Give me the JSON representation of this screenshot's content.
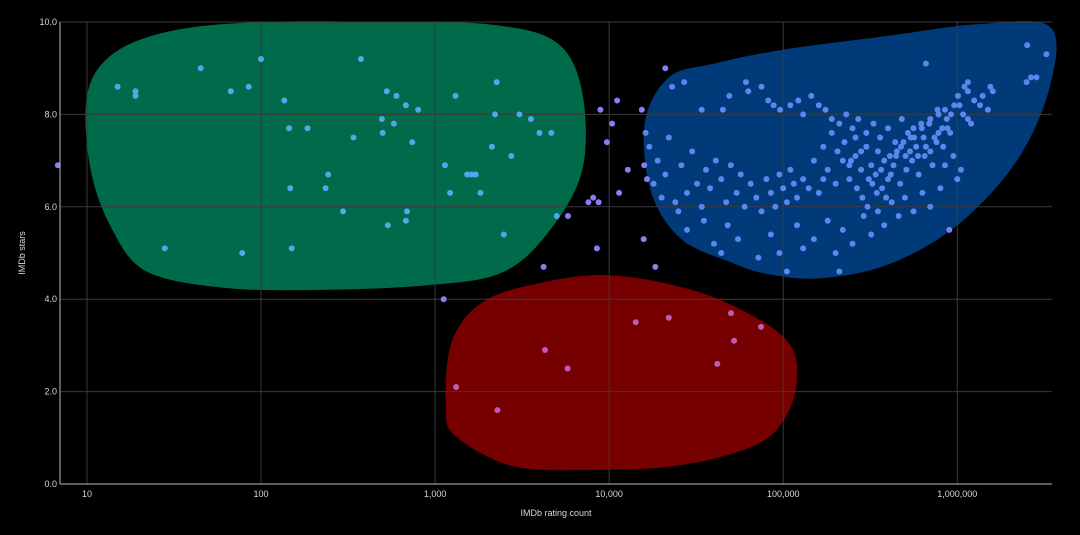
{
  "chart_data": {
    "type": "scatter",
    "xlabel": "IMDb rating count",
    "ylabel": "IMDb stars",
    "x_scale": "log",
    "xlim": [
      7,
      3500000
    ],
    "ylim": [
      0,
      10
    ],
    "x_ticks": [
      {
        "value": 10,
        "label": "10"
      },
      {
        "value": 100,
        "label": "100"
      },
      {
        "value": 1000,
        "label": "1,000"
      },
      {
        "value": 10000,
        "label": "10,000"
      },
      {
        "value": 100000,
        "label": "100,000"
      },
      {
        "value": 1000000,
        "label": "1,000,000"
      }
    ],
    "y_ticks": [
      {
        "value": 0,
        "label": "0.0"
      },
      {
        "value": 2,
        "label": "2.0"
      },
      {
        "value": 4,
        "label": "4.0"
      },
      {
        "value": 6,
        "label": "6.0"
      },
      {
        "value": 8,
        "label": "8.0"
      },
      {
        "value": 10,
        "label": "10.0"
      }
    ],
    "grid": true,
    "legend": "none",
    "colors": {
      "background": "#000000",
      "grid": "#3a3a3a",
      "axis": "#b8b8b8",
      "points": "#8a7cf5",
      "points_green_region": "#4fa9e6",
      "points_blue_region": "#5b86f0",
      "points_red_region": "#c05ab8",
      "region_green": "#006b4a",
      "region_blue": "#003a78",
      "region_red": "#760000"
    },
    "regions": [
      {
        "color": "region_green",
        "outline": [
          [
            10,
            8.4
          ],
          [
            10.5,
            6.8
          ],
          [
            14,
            5.5
          ],
          [
            22,
            4.6
          ],
          [
            60,
            4.25
          ],
          [
            200,
            4.2
          ],
          [
            900,
            4.3
          ],
          [
            2500,
            4.6
          ],
          [
            4800,
            5.6
          ],
          [
            7100,
            6.9
          ],
          [
            6900,
            8.6
          ],
          [
            4800,
            9.6
          ],
          [
            2000,
            9.95
          ],
          [
            600,
            10.0
          ],
          [
            100,
            10.0
          ],
          [
            30,
            9.8
          ],
          [
            14,
            9.3
          ],
          [
            10,
            8.4
          ]
        ]
      },
      {
        "color": "region_blue",
        "outline": [
          [
            16000,
            7.8
          ],
          [
            17500,
            6.3
          ],
          [
            26000,
            5.3
          ],
          [
            50000,
            4.8
          ],
          [
            80000,
            4.55
          ],
          [
            160000,
            4.45
          ],
          [
            400000,
            4.75
          ],
          [
            1000000,
            5.6
          ],
          [
            2200000,
            7.0
          ],
          [
            3400000,
            8.6
          ],
          [
            3400000,
            9.9
          ],
          [
            1300000,
            9.95
          ],
          [
            400000,
            9.7
          ],
          [
            100000,
            9.4
          ],
          [
            40000,
            9.1
          ],
          [
            22000,
            8.8
          ],
          [
            16000,
            7.8
          ]
        ]
      },
      {
        "color": "region_red",
        "outline": [
          [
            1150,
            1.7
          ],
          [
            1300,
            1.05
          ],
          [
            2700,
            0.4
          ],
          [
            7000,
            0.3
          ],
          [
            25000,
            0.4
          ],
          [
            70000,
            0.85
          ],
          [
            105000,
            1.5
          ],
          [
            120000,
            2.3
          ],
          [
            110000,
            3.0
          ],
          [
            70000,
            3.6
          ],
          [
            30000,
            4.2
          ],
          [
            10000,
            4.52
          ],
          [
            4000,
            4.35
          ],
          [
            1900,
            3.95
          ],
          [
            1250,
            3.1
          ],
          [
            1150,
            1.7
          ]
        ]
      }
    ],
    "points": [
      [
        6.8,
        6.9
      ],
      [
        15,
        8.6
      ],
      [
        19,
        8.5
      ],
      [
        19,
        8.4
      ],
      [
        28,
        5.1
      ],
      [
        45,
        9.0
      ],
      [
        67,
        8.5
      ],
      [
        78,
        5.0
      ],
      [
        85,
        8.6
      ],
      [
        100,
        9.2
      ],
      [
        136,
        8.3
      ],
      [
        145,
        7.7
      ],
      [
        147,
        6.4
      ],
      [
        150,
        5.1
      ],
      [
        185,
        7.7
      ],
      [
        235,
        6.4
      ],
      [
        243,
        6.7
      ],
      [
        296,
        5.9
      ],
      [
        340,
        7.5
      ],
      [
        375,
        9.2
      ],
      [
        495,
        7.9
      ],
      [
        500,
        7.6
      ],
      [
        528,
        8.5
      ],
      [
        535,
        5.6
      ],
      [
        580,
        7.8
      ],
      [
        600,
        8.4
      ],
      [
        680,
        8.2
      ],
      [
        690,
        5.9
      ],
      [
        680,
        5.7
      ],
      [
        740,
        7.4
      ],
      [
        800,
        8.1
      ],
      [
        1140,
        6.9
      ],
      [
        1220,
        6.3
      ],
      [
        1310,
        8.4
      ],
      [
        1530,
        6.7
      ],
      [
        1620,
        6.7
      ],
      [
        1710,
        6.7
      ],
      [
        1820,
        6.3
      ],
      [
        2120,
        7.3
      ],
      [
        2210,
        8.0
      ],
      [
        2260,
        8.7
      ],
      [
        2480,
        5.4
      ],
      [
        2740,
        7.1
      ],
      [
        3050,
        8.0
      ],
      [
        3550,
        7.9
      ],
      [
        3980,
        7.6
      ],
      [
        4650,
        7.6
      ],
      [
        5000,
        5.8
      ],
      [
        5800,
        5.8
      ],
      [
        4200,
        4.7
      ],
      [
        7600,
        6.1
      ],
      [
        8100,
        6.2
      ],
      [
        8700,
        6.1
      ],
      [
        8500,
        5.1
      ],
      [
        8900,
        8.1
      ],
      [
        9700,
        7.4
      ],
      [
        10400,
        7.8
      ],
      [
        11100,
        8.3
      ],
      [
        11400,
        6.3
      ],
      [
        12800,
        6.8
      ],
      [
        15400,
        8.1
      ],
      [
        15800,
        5.3
      ],
      [
        15900,
        6.9
      ],
      [
        18400,
        4.7
      ],
      [
        1120,
        4.0
      ],
      [
        1320,
        2.1
      ],
      [
        2280,
        1.6
      ],
      [
        4280,
        2.9
      ],
      [
        5780,
        2.5
      ],
      [
        14200,
        3.5
      ],
      [
        22000,
        3.6
      ],
      [
        41800,
        2.6
      ],
      [
        50100,
        3.7
      ],
      [
        52200,
        3.1
      ],
      [
        74500,
        3.4
      ],
      [
        2520000,
        9.5
      ],
      [
        3250000,
        9.3
      ],
      [
        2850000,
        8.8
      ],
      [
        2650000,
        8.8
      ],
      [
        2500000,
        8.7
      ],
      [
        1150000,
        8.7
      ],
      [
        1100000,
        8.6
      ],
      [
        1150000,
        8.5
      ],
      [
        660000,
        9.1
      ],
      [
        920000,
        8.0
      ],
      [
        1150000,
        7.9
      ],
      [
        1030000,
        8.2
      ],
      [
        1010000,
        8.4
      ],
      [
        850000,
        8.1
      ],
      [
        780000,
        8.0
      ],
      [
        700000,
        7.9
      ],
      [
        620000,
        7.8
      ],
      [
        560000,
        7.7
      ],
      [
        540000,
        7.5
      ],
      [
        490000,
        7.4
      ],
      [
        450000,
        7.2
      ],
      [
        410000,
        7.1
      ],
      [
        380000,
        7.0
      ],
      [
        350000,
        7.2
      ],
      [
        320000,
        6.9
      ],
      [
        300000,
        7.3
      ],
      [
        280000,
        6.8
      ],
      [
        260000,
        7.1
      ],
      [
        240000,
        6.6
      ],
      [
        220000,
        7.0
      ],
      [
        200000,
        6.5
      ],
      [
        180000,
        6.8
      ],
      [
        170000,
        6.6
      ],
      [
        160000,
        6.3
      ],
      [
        150000,
        7.0
      ],
      [
        140000,
        6.4
      ],
      [
        130000,
        6.6
      ],
      [
        120000,
        6.2
      ],
      [
        115000,
        6.5
      ],
      [
        110000,
        6.8
      ],
      [
        105000,
        6.1
      ],
      [
        100000,
        6.4
      ],
      [
        95000,
        6.7
      ],
      [
        90000,
        6.0
      ],
      [
        85000,
        6.3
      ],
      [
        80000,
        6.6
      ],
      [
        75000,
        5.9
      ],
      [
        70000,
        6.2
      ],
      [
        65000,
        6.5
      ],
      [
        60000,
        6.0
      ],
      [
        57000,
        6.7
      ],
      [
        54000,
        6.3
      ],
      [
        50000,
        6.9
      ],
      [
        47000,
        6.1
      ],
      [
        44000,
        6.6
      ],
      [
        41000,
        7.0
      ],
      [
        38000,
        6.4
      ],
      [
        36000,
        6.8
      ],
      [
        34000,
        6.0
      ],
      [
        32000,
        6.5
      ],
      [
        30000,
        7.2
      ],
      [
        28000,
        6.3
      ],
      [
        26000,
        6.9
      ],
      [
        24000,
        6.1
      ],
      [
        22000,
        7.5
      ],
      [
        21000,
        6.7
      ],
      [
        20000,
        6.2
      ],
      [
        19000,
        7.0
      ],
      [
        18000,
        6.5
      ],
      [
        17000,
        7.3
      ],
      [
        16500,
        6.6
      ],
      [
        16200,
        7.6
      ],
      [
        21000,
        9.0
      ],
      [
        27000,
        8.7
      ],
      [
        23000,
        8.6
      ],
      [
        34000,
        8.1
      ],
      [
        45000,
        8.1
      ],
      [
        49000,
        8.4
      ],
      [
        61000,
        8.7
      ],
      [
        63000,
        8.5
      ],
      [
        75000,
        8.6
      ],
      [
        82000,
        8.3
      ],
      [
        88000,
        8.2
      ],
      [
        96000,
        8.1
      ],
      [
        110000,
        8.2
      ],
      [
        122000,
        8.3
      ],
      [
        130000,
        8.0
      ],
      [
        145000,
        8.4
      ],
      [
        160000,
        8.2
      ],
      [
        175000,
        8.1
      ],
      [
        190000,
        7.9
      ],
      [
        210000,
        7.8
      ],
      [
        230000,
        8.0
      ],
      [
        250000,
        7.7
      ],
      [
        270000,
        7.9
      ],
      [
        300000,
        7.6
      ],
      [
        330000,
        7.8
      ],
      [
        360000,
        7.5
      ],
      [
        400000,
        7.7
      ],
      [
        440000,
        7.4
      ],
      [
        480000,
        7.9
      ],
      [
        520000,
        7.6
      ],
      [
        580000,
        7.3
      ],
      [
        640000,
        7.5
      ],
      [
        700000,
        7.2
      ],
      [
        760000,
        7.4
      ],
      [
        850000,
        6.9
      ],
      [
        950000,
        7.1
      ],
      [
        1050000,
        6.8
      ],
      [
        1200000,
        7.8
      ],
      [
        1350000,
        8.2
      ],
      [
        1500000,
        8.1
      ],
      [
        130000,
        5.1
      ],
      [
        120000,
        5.6
      ],
      [
        95000,
        5.0
      ],
      [
        85000,
        5.4
      ],
      [
        72000,
        4.9
      ],
      [
        105000,
        4.6
      ],
      [
        150000,
        5.3
      ],
      [
        180000,
        5.7
      ],
      [
        200000,
        5.0
      ],
      [
        220000,
        5.5
      ],
      [
        250000,
        5.2
      ],
      [
        290000,
        5.8
      ],
      [
        320000,
        5.4
      ],
      [
        350000,
        5.9
      ],
      [
        380000,
        5.6
      ],
      [
        420000,
        6.1
      ],
      [
        460000,
        5.8
      ],
      [
        500000,
        6.2
      ],
      [
        560000,
        5.9
      ],
      [
        630000,
        6.3
      ],
      [
        700000,
        6.0
      ],
      [
        800000,
        6.4
      ],
      [
        900000,
        5.5
      ],
      [
        1000000,
        6.6
      ],
      [
        55000,
        5.3
      ],
      [
        48000,
        5.6
      ],
      [
        40000,
        5.2
      ],
      [
        35000,
        5.7
      ],
      [
        28000,
        5.5
      ],
      [
        25000,
        5.9
      ],
      [
        44000,
        5.0
      ],
      [
        210000,
        4.6
      ],
      [
        240000,
        6.9
      ],
      [
        260000,
        7.5
      ],
      [
        280000,
        7.2
      ],
      [
        310000,
        6.6
      ],
      [
        340000,
        6.7
      ],
      [
        370000,
        6.4
      ],
      [
        400000,
        6.6
      ],
      [
        430000,
        6.9
      ],
      [
        470000,
        6.5
      ],
      [
        510000,
        6.8
      ],
      [
        550000,
        7.0
      ],
      [
        600000,
        6.7
      ],
      [
        650000,
        7.1
      ],
      [
        720000,
        6.9
      ],
      [
        780000,
        7.6
      ],
      [
        830000,
        7.3
      ],
      [
        880000,
        7.7
      ],
      [
        170000,
        7.3
      ],
      [
        190000,
        7.6
      ],
      [
        205000,
        7.2
      ],
      [
        225000,
        7.4
      ],
      [
        245000,
        7.0
      ],
      [
        265000,
        6.4
      ],
      [
        285000,
        6.2
      ],
      [
        305000,
        6.0
      ],
      [
        325000,
        6.5
      ],
      [
        345000,
        6.3
      ],
      [
        365000,
        6.8
      ],
      [
        390000,
        6.2
      ],
      [
        415000,
        6.7
      ],
      [
        445000,
        7.1
      ],
      [
        475000,
        7.3
      ],
      [
        505000,
        7.1
      ],
      [
        535000,
        7.2
      ],
      [
        565000,
        7.5
      ],
      [
        595000,
        7.1
      ],
      [
        625000,
        7.7
      ],
      [
        660000,
        7.3
      ],
      [
        690000,
        7.8
      ],
      [
        740000,
        7.5
      ],
      [
        770000,
        8.1
      ],
      [
        820000,
        7.7
      ],
      [
        870000,
        7.9
      ],
      [
        910000,
        7.6
      ],
      [
        960000,
        8.2
      ],
      [
        1080000,
        8.0
      ],
      [
        1250000,
        8.3
      ],
      [
        1400000,
        8.4
      ],
      [
        1550000,
        8.6
      ],
      [
        1600000,
        8.5
      ]
    ]
  }
}
